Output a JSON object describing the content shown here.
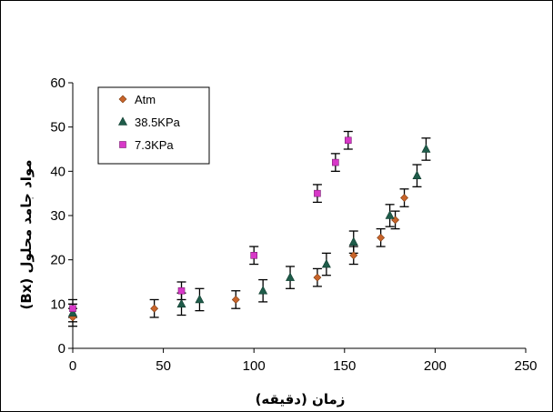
{
  "chart_data": {
    "type": "scatter",
    "xlabel": "زمان (دقیقه)",
    "ylabel": "مواد جامد محلول (Bx)",
    "xlim": [
      0,
      250
    ],
    "ylim": [
      0,
      60
    ],
    "xticks": [
      "0",
      "50",
      "100",
      "150",
      "200",
      "250"
    ],
    "yticks": [
      "0",
      "10",
      "20",
      "30",
      "40",
      "50",
      "60"
    ],
    "grid": false,
    "legend_position": "top-left",
    "error_bars": true,
    "series": [
      {
        "name": "Atm",
        "marker": "diamond",
        "color": "#C8642A",
        "x": [
          0,
          45,
          90,
          135,
          155,
          170,
          178,
          183
        ],
        "y": [
          7,
          9,
          11,
          16,
          21,
          25,
          29,
          34
        ],
        "err": [
          2,
          2,
          2,
          2,
          2,
          2,
          2,
          2
        ]
      },
      {
        "name": "38.5KPa",
        "marker": "triangle",
        "color": "#1F5C4A",
        "x": [
          0,
          60,
          70,
          105,
          120,
          140,
          155,
          175,
          190,
          195
        ],
        "y": [
          8,
          10,
          11,
          13,
          16,
          19,
          24,
          30,
          39,
          45
        ],
        "err": [
          2,
          2.5,
          2.5,
          2.5,
          2.5,
          2.5,
          2.5,
          2.5,
          2.5,
          2.5
        ]
      },
      {
        "name": "7.3KPa",
        "marker": "square",
        "color": "#D838C8",
        "x": [
          0,
          60,
          100,
          135,
          145,
          152
        ],
        "y": [
          9,
          13,
          21,
          35,
          42,
          47
        ],
        "err": [
          2,
          2,
          2,
          2,
          2,
          2
        ]
      }
    ]
  }
}
